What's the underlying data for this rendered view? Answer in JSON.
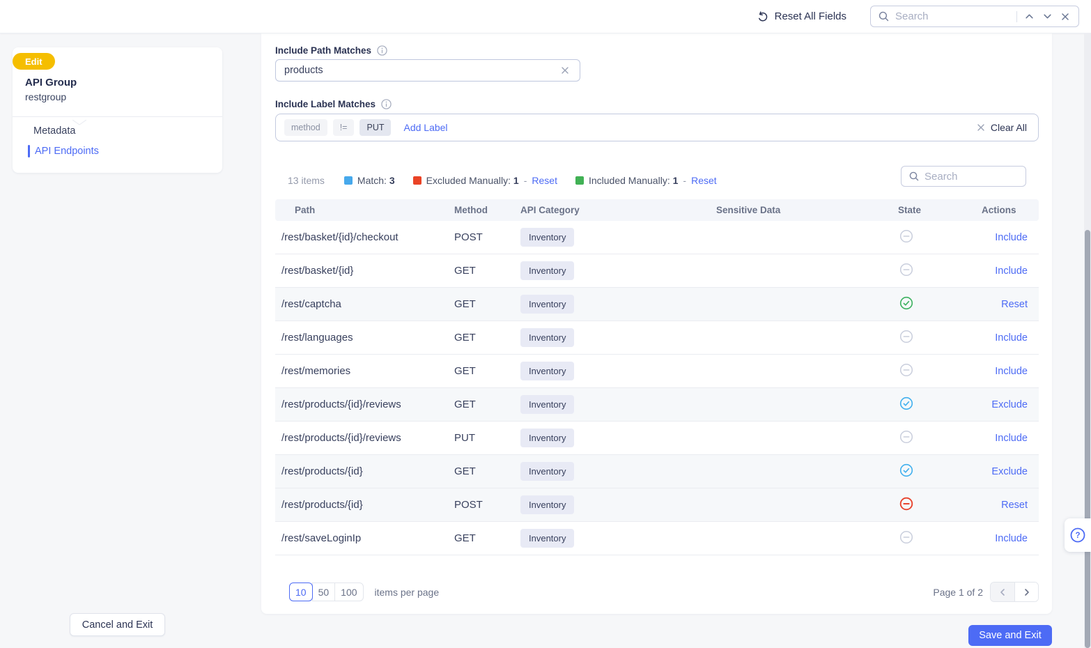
{
  "topbar": {
    "reset_all": "Reset All Fields",
    "search_placeholder": "Search"
  },
  "sidebar": {
    "badge": "Edit",
    "title": "API Group",
    "subtitle": "restgroup",
    "nav": [
      {
        "label": "Metadata"
      },
      {
        "label": "API Endpoints"
      }
    ]
  },
  "filters": {
    "path": {
      "label": "Include Path Matches",
      "value": "products"
    },
    "labels": {
      "label": "Include Label Matches",
      "chip_key": "method",
      "chip_op": "!=",
      "chip_value": "PUT",
      "add_label": "Add Label",
      "clear_all": "Clear All"
    }
  },
  "summary": {
    "count": "13 items",
    "legend": [
      {
        "label": "Match:",
        "value": "3",
        "color": "#47A9EC",
        "reset": null
      },
      {
        "label": "Excluded Manually:",
        "value": "1",
        "color": "#EA4326",
        "reset": "Reset"
      },
      {
        "label": "Included Manually:",
        "value": "1",
        "color": "#41B155",
        "reset": "Reset"
      }
    ],
    "search_placeholder": "Search"
  },
  "table": {
    "columns": [
      "Path",
      "Method",
      "API Category",
      "Sensitive Data",
      "State",
      "Actions"
    ],
    "state_colors": {
      "none": "#C9CEDC",
      "match": "#41B0EE",
      "included": "#3CB15F",
      "excluded": "#E8432D"
    },
    "rows": [
      {
        "path": "/rest/basket/{id}/checkout",
        "method": "POST",
        "category": "Inventory",
        "sensitive": "",
        "state": "none",
        "action": "Include",
        "highlight": false
      },
      {
        "path": "/rest/basket/{id}",
        "method": "GET",
        "category": "Inventory",
        "sensitive": "",
        "state": "none",
        "action": "Include",
        "highlight": false
      },
      {
        "path": "/rest/captcha",
        "method": "GET",
        "category": "Inventory",
        "sensitive": "",
        "state": "included",
        "action": "Reset",
        "highlight": true
      },
      {
        "path": "/rest/languages",
        "method": "GET",
        "category": "Inventory",
        "sensitive": "",
        "state": "none",
        "action": "Include",
        "highlight": false
      },
      {
        "path": "/rest/memories",
        "method": "GET",
        "category": "Inventory",
        "sensitive": "",
        "state": "none",
        "action": "Include",
        "highlight": false
      },
      {
        "path": "/rest/products/{id}/reviews",
        "method": "GET",
        "category": "Inventory",
        "sensitive": "",
        "state": "match",
        "action": "Exclude",
        "highlight": true
      },
      {
        "path": "/rest/products/{id}/reviews",
        "method": "PUT",
        "category": "Inventory",
        "sensitive": "",
        "state": "none",
        "action": "Include",
        "highlight": false
      },
      {
        "path": "/rest/products/{id}",
        "method": "GET",
        "category": "Inventory",
        "sensitive": "",
        "state": "match",
        "action": "Exclude",
        "highlight": true
      },
      {
        "path": "/rest/products/{id}",
        "method": "POST",
        "category": "Inventory",
        "sensitive": "",
        "state": "excluded",
        "action": "Reset",
        "highlight": true
      },
      {
        "path": "/rest/saveLoginIp",
        "method": "GET",
        "category": "Inventory",
        "sensitive": "",
        "state": "none",
        "action": "Include",
        "highlight": false
      }
    ]
  },
  "pagination": {
    "sizes": [
      "10",
      "50",
      "100"
    ],
    "active": "10",
    "suffix": "items per page",
    "page": "Page 1 of 2"
  },
  "footer": {
    "cancel": "Cancel and Exit",
    "save": "Save and Exit"
  },
  "help_icon": "?"
}
